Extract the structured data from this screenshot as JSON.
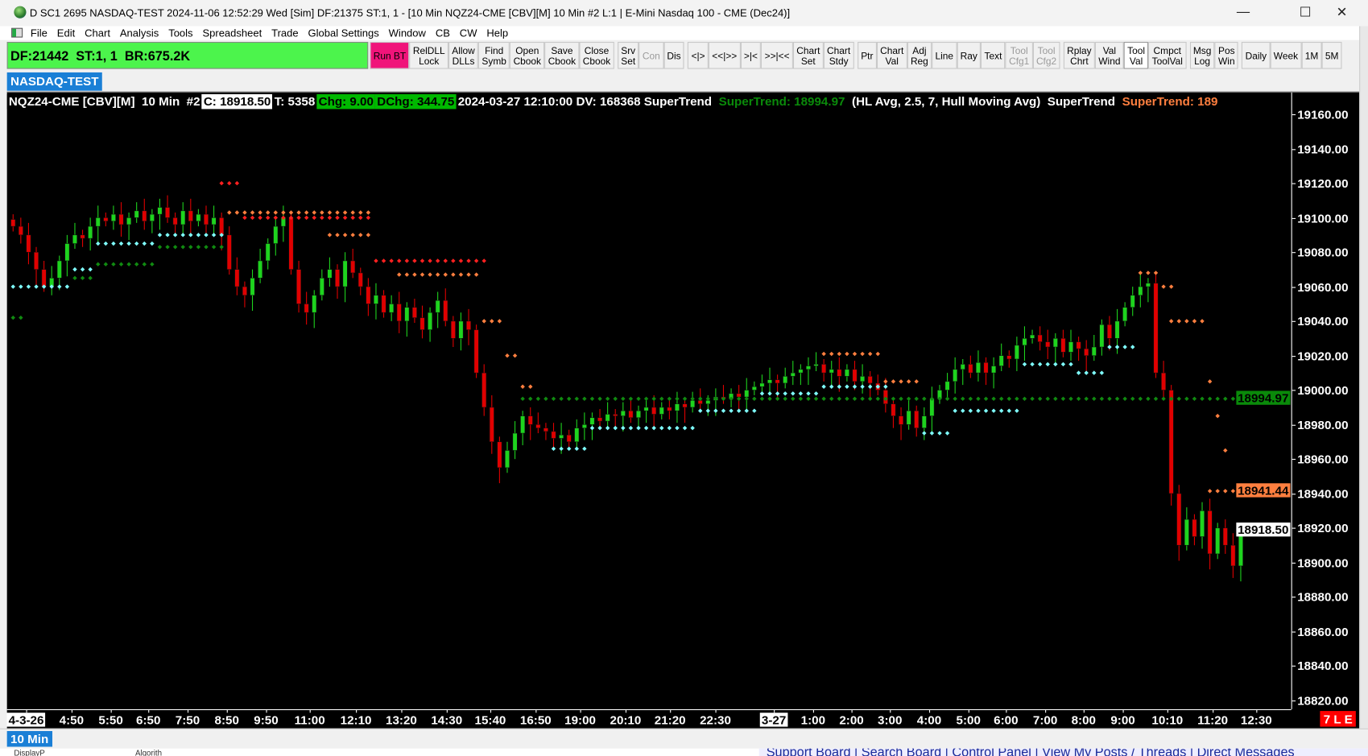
{
  "window": {
    "title": "D SC1 2695 NASDAQ-TEST 2024-11-06  12:52:29 Wed [Sim] DF:21375  ST:1, 1 - [10 Min NQZ24-CME [CBV][M]  10 Min  #2 L:1 | E-Mini Nasdaq 100 - CME (Dec24)]",
    "min": "—",
    "max": "☐",
    "close": "✕"
  },
  "menu": [
    "File",
    "Edit",
    "Chart",
    "Analysis",
    "Tools",
    "Spreadsheet",
    "Trade",
    "Global Settings",
    "Window",
    "CB",
    "CW",
    "Help"
  ],
  "mdi": [
    "_",
    "🗗",
    "x"
  ],
  "status": "DF:21442  ST:1, 1  BR:675.2K",
  "toolbar": [
    {
      "label": "Run BT",
      "kind": "run"
    },
    {
      "label": "RelDLL\nLock"
    },
    {
      "label": "Allow\nDLLs"
    },
    {
      "label": "Find\nSymb"
    },
    {
      "label": "Open\nCbook"
    },
    {
      "label": "Save\nCbook"
    },
    {
      "label": "Close\nCbook"
    },
    {
      "gap": true
    },
    {
      "label": "Srv\nSet"
    },
    {
      "label": "Con",
      "kind": "dis"
    },
    {
      "label": "Dis"
    },
    {
      "gap": true
    },
    {
      "label": "<|>"
    },
    {
      "label": "<<|>>"
    },
    {
      "label": ">|<"
    },
    {
      "label": ">>|<<"
    },
    {
      "label": "Chart\nSet"
    },
    {
      "label": "Chart\nStdy"
    },
    {
      "gap": true
    },
    {
      "label": "Ptr"
    },
    {
      "label": "Chart\nVal"
    },
    {
      "label": "Adj\nReg"
    },
    {
      "label": "Line"
    },
    {
      "label": "Ray"
    },
    {
      "label": "Text"
    },
    {
      "label": "Tool\nCfg1",
      "kind": "dis"
    },
    {
      "label": "Tool\nCfg2",
      "kind": "dis"
    },
    {
      "gap": true
    },
    {
      "label": "Rplay\nChrt"
    },
    {
      "label": "Val\nWind"
    },
    {
      "label": "Tool\nVal",
      "kind": "on"
    },
    {
      "label": "Cmpct\nToolVal"
    },
    {
      "gap": true
    },
    {
      "label": "Msg\nLog"
    },
    {
      "label": "Pos\nWin"
    },
    {
      "gap": true
    },
    {
      "label": "Daily"
    },
    {
      "label": "Week"
    },
    {
      "label": "1M"
    },
    {
      "label": "5M"
    },
    {
      "gap": true
    },
    {
      "gap": true
    },
    {
      "gap": true
    },
    {
      "gap": true
    },
    {
      "gap": true
    },
    {
      "label": "<"
    },
    {
      "label": ">"
    }
  ],
  "symbol_tab": "NASDAQ-TEST",
  "header": [
    {
      "text": "NQZ24-CME [CBV][M]  10 Min  #2",
      "fg": "#ffffff",
      "bg": "#000000"
    },
    {
      "text": "C: 18918.50",
      "fg": "#000000",
      "bg": "#ffffff"
    },
    {
      "text": "T: 5358",
      "fg": "#ffffff",
      "bg": "#000000"
    },
    {
      "text": "Chg: 9.00",
      "fg": "#000000",
      "bg": "#00b800"
    },
    {
      "text": "DChg: 344.75",
      "fg": "#000000",
      "bg": "#00b800"
    },
    {
      "text": "2024-03-27 12:10:00 DV: 168368 SuperTrend ",
      "fg": "#ffffff",
      "bg": "#000000"
    },
    {
      "text": "SuperTrend: 18994.97 ",
      "fg": "#0a8a0a",
      "bg": "#000000"
    },
    {
      "text": "(HL Avg, 2.5, 7, Hull Moving Avg)  SuperTrend ",
      "fg": "#ffffff",
      "bg": "#000000"
    },
    {
      "text": "SuperTrend: 189",
      "fg": "#ff7f3f",
      "bg": "#000000"
    }
  ],
  "chart_data": {
    "type": "candlestick",
    "ylim": [
      18815,
      19172
    ],
    "price_ticks": [
      "19160.00",
      "19140.00",
      "19120.00",
      "19100.00",
      "19080.00",
      "19060.00",
      "19040.00",
      "19020.00",
      "19000.00",
      "18980.00",
      "18960.00",
      "18940.00",
      "18920.00",
      "18900.00",
      "18880.00",
      "18860.00",
      "18840.00",
      "18820.00"
    ],
    "closes": [
      19095,
      19090,
      19080,
      19070,
      19060,
      19065,
      19075,
      19085,
      19090,
      19088,
      19095,
      19100,
      19098,
      19102,
      19096,
      19100,
      19104,
      19098,
      19102,
      19106,
      19100,
      19096,
      19104,
      19098,
      19102,
      19096,
      19100,
      19090,
      19070,
      19060,
      19055,
      19065,
      19075,
      19085,
      19095,
      19100,
      19070,
      19050,
      19045,
      19055,
      19065,
      19070,
      19060,
      19075,
      19068,
      19060,
      19050,
      19055,
      19045,
      19050,
      19040,
      19048,
      19042,
      19035,
      19045,
      19052,
      19040,
      19030,
      19040,
      19035,
      19010,
      18990,
      18970,
      18955,
      18965,
      18975,
      18985,
      18980,
      18978,
      18976,
      18972,
      18974,
      18970,
      18978,
      18980,
      18984,
      18982,
      18986,
      18985,
      18988,
      18984,
      18988,
      18990,
      18986,
      18990,
      18988,
      18992,
      18990,
      18994,
      18992,
      18994,
      18996,
      18995,
      18998,
      18996,
      19000,
      19002,
      19004,
      19006,
      19004,
      19008,
      19010,
      19012,
      19014,
      19015,
      19010,
      19012,
      19008,
      19012,
      19005,
      19008,
      19004,
      19000,
      18992,
      18985,
      18980,
      18988,
      18978,
      18985,
      18995,
      19000,
      19005,
      19012,
      19015,
      19010,
      19016,
      19010,
      19014,
      19020,
      19018,
      19026,
      19030,
      19032,
      19028,
      19025,
      19030,
      19022,
      19028,
      19024,
      19020,
      19025,
      19038,
      19030,
      19040,
      19048,
      19055,
      19060,
      19062,
      19010,
      19000,
      18940,
      18910,
      18925,
      18915,
      18930,
      18905,
      18920,
      18910,
      18898,
      18918.5
    ],
    "up_color": "#1ed41e",
    "down_color": "#e00000",
    "supertrend_segments": [
      {
        "from": 27,
        "to": 29,
        "value": 19120,
        "color": "#ff2020"
      },
      {
        "from": 28,
        "to": 46,
        "value": 19103,
        "color": "#ff7f3f"
      },
      {
        "from": 30,
        "to": 46,
        "value": 19100,
        "color": "#ff2020"
      },
      {
        "from": 41,
        "to": 46,
        "value": 19090,
        "color": "#ff7f3f"
      },
      {
        "from": 47,
        "to": 61,
        "value": 19075,
        "color": "#ff2020"
      },
      {
        "from": 50,
        "to": 60,
        "value": 19067,
        "color": "#ff7f3f"
      },
      {
        "from": 61,
        "to": 63,
        "value": 19040,
        "color": "#ff7f3f"
      },
      {
        "from": 64,
        "to": 65,
        "value": 19020,
        "color": "#ff7f3f"
      },
      {
        "from": 66,
        "to": 67,
        "value": 19002,
        "color": "#ff7f3f"
      },
      {
        "from": 105,
        "to": 112,
        "value": 19021,
        "color": "#ff7f3f"
      },
      {
        "from": 113,
        "to": 117,
        "value": 19005,
        "color": "#ff7f3f"
      },
      {
        "from": 146,
        "to": 148,
        "value": 19068,
        "color": "#ff7f3f"
      },
      {
        "from": 149,
        "to": 150,
        "value": 19060,
        "color": "#ff7f3f"
      },
      {
        "from": 150,
        "to": 154,
        "value": 19040,
        "color": "#ff7f3f"
      },
      {
        "from": 155,
        "to": 155,
        "value": 19005,
        "color": "#ff7f3f"
      },
      {
        "from": 156,
        "to": 156,
        "value": 18985,
        "color": "#ff7f3f"
      },
      {
        "from": 157,
        "to": 157,
        "value": 18965,
        "color": "#ff7f3f"
      },
      {
        "from": 155,
        "to": 159,
        "value": 18941.44,
        "color": "#ff7f3f"
      },
      {
        "from": 0,
        "to": 7,
        "value": 19060,
        "color": "#7fffff"
      },
      {
        "from": 8,
        "to": 10,
        "value": 19070,
        "color": "#7fffff"
      },
      {
        "from": 11,
        "to": 18,
        "value": 19085,
        "color": "#7fffff"
      },
      {
        "from": 19,
        "to": 27,
        "value": 19090,
        "color": "#7fffff"
      },
      {
        "from": 70,
        "to": 74,
        "value": 18966,
        "color": "#7fffff"
      },
      {
        "from": 75,
        "to": 88,
        "value": 18978,
        "color": "#7fffff"
      },
      {
        "from": 89,
        "to": 96,
        "value": 18988,
        "color": "#7fffff"
      },
      {
        "from": 97,
        "to": 104,
        "value": 18998,
        "color": "#7fffff"
      },
      {
        "from": 105,
        "to": 113,
        "value": 19002,
        "color": "#7fffff"
      },
      {
        "from": 118,
        "to": 121,
        "value": 18975,
        "color": "#7fffff"
      },
      {
        "from": 122,
        "to": 130,
        "value": 18988,
        "color": "#7fffff"
      },
      {
        "from": 131,
        "to": 137,
        "value": 19015,
        "color": "#7fffff"
      },
      {
        "from": 138,
        "to": 141,
        "value": 19010,
        "color": "#7fffff"
      },
      {
        "from": 142,
        "to": 145,
        "value": 19025,
        "color": "#7fffff"
      },
      {
        "from": 0,
        "to": 1,
        "value": 19042,
        "color": "#108a10"
      },
      {
        "from": 8,
        "to": 10,
        "value": 19065,
        "color": "#108a10"
      },
      {
        "from": 11,
        "to": 18,
        "value": 19073,
        "color": "#108a10"
      },
      {
        "from": 19,
        "to": 27,
        "value": 19083,
        "color": "#108a10"
      },
      {
        "from": 66,
        "to": 159,
        "value": 18994.97,
        "color": "#108a10"
      }
    ],
    "price_markers": [
      {
        "text": "18994.97",
        "value": 18994.97,
        "bg": "#0a8a0a",
        "fg": "#000000"
      },
      {
        "text": "18941.44",
        "value": 18941.44,
        "bg": "#ff7f3f",
        "fg": "#000000"
      },
      {
        "text": "18918.50",
        "value": 18918.5,
        "bg": "#ffffff",
        "fg": "#000000"
      }
    ],
    "time_labels": [
      {
        "text": "4-3-26",
        "day": true
      },
      {
        "text": "4:50"
      },
      {
        "text": "5:50"
      },
      {
        "text": "6:50"
      },
      {
        "text": "7:50"
      },
      {
        "text": "8:50"
      },
      {
        "text": "9:50"
      },
      {
        "text": "11:00"
      },
      {
        "text": "12:10"
      },
      {
        "text": "13:20"
      },
      {
        "text": "14:30"
      },
      {
        "text": "15:40"
      },
      {
        "text": "16:50"
      },
      {
        "text": "19:00"
      },
      {
        "text": "20:10"
      },
      {
        "text": "21:20"
      },
      {
        "text": "22:30"
      },
      {
        "text": "3-27",
        "day": true
      },
      {
        "text": "1:00"
      },
      {
        "text": "2:00"
      },
      {
        "text": "3:00"
      },
      {
        "text": "4:00"
      },
      {
        "text": "5:00"
      },
      {
        "text": "6:00"
      },
      {
        "text": "7:00"
      },
      {
        "text": "8:00"
      },
      {
        "text": "9:00"
      },
      {
        "text": "10:10"
      },
      {
        "text": "11:20"
      },
      {
        "text": "12:30"
      }
    ]
  },
  "badge": "7 L E",
  "interval_tab": "10 Min",
  "bottom_left": [
    "DisplayP",
    "Algorith"
  ],
  "forum_links": "  Support Board | Search Board | Control Panel | View My Posts / Threads | Direct Messages"
}
